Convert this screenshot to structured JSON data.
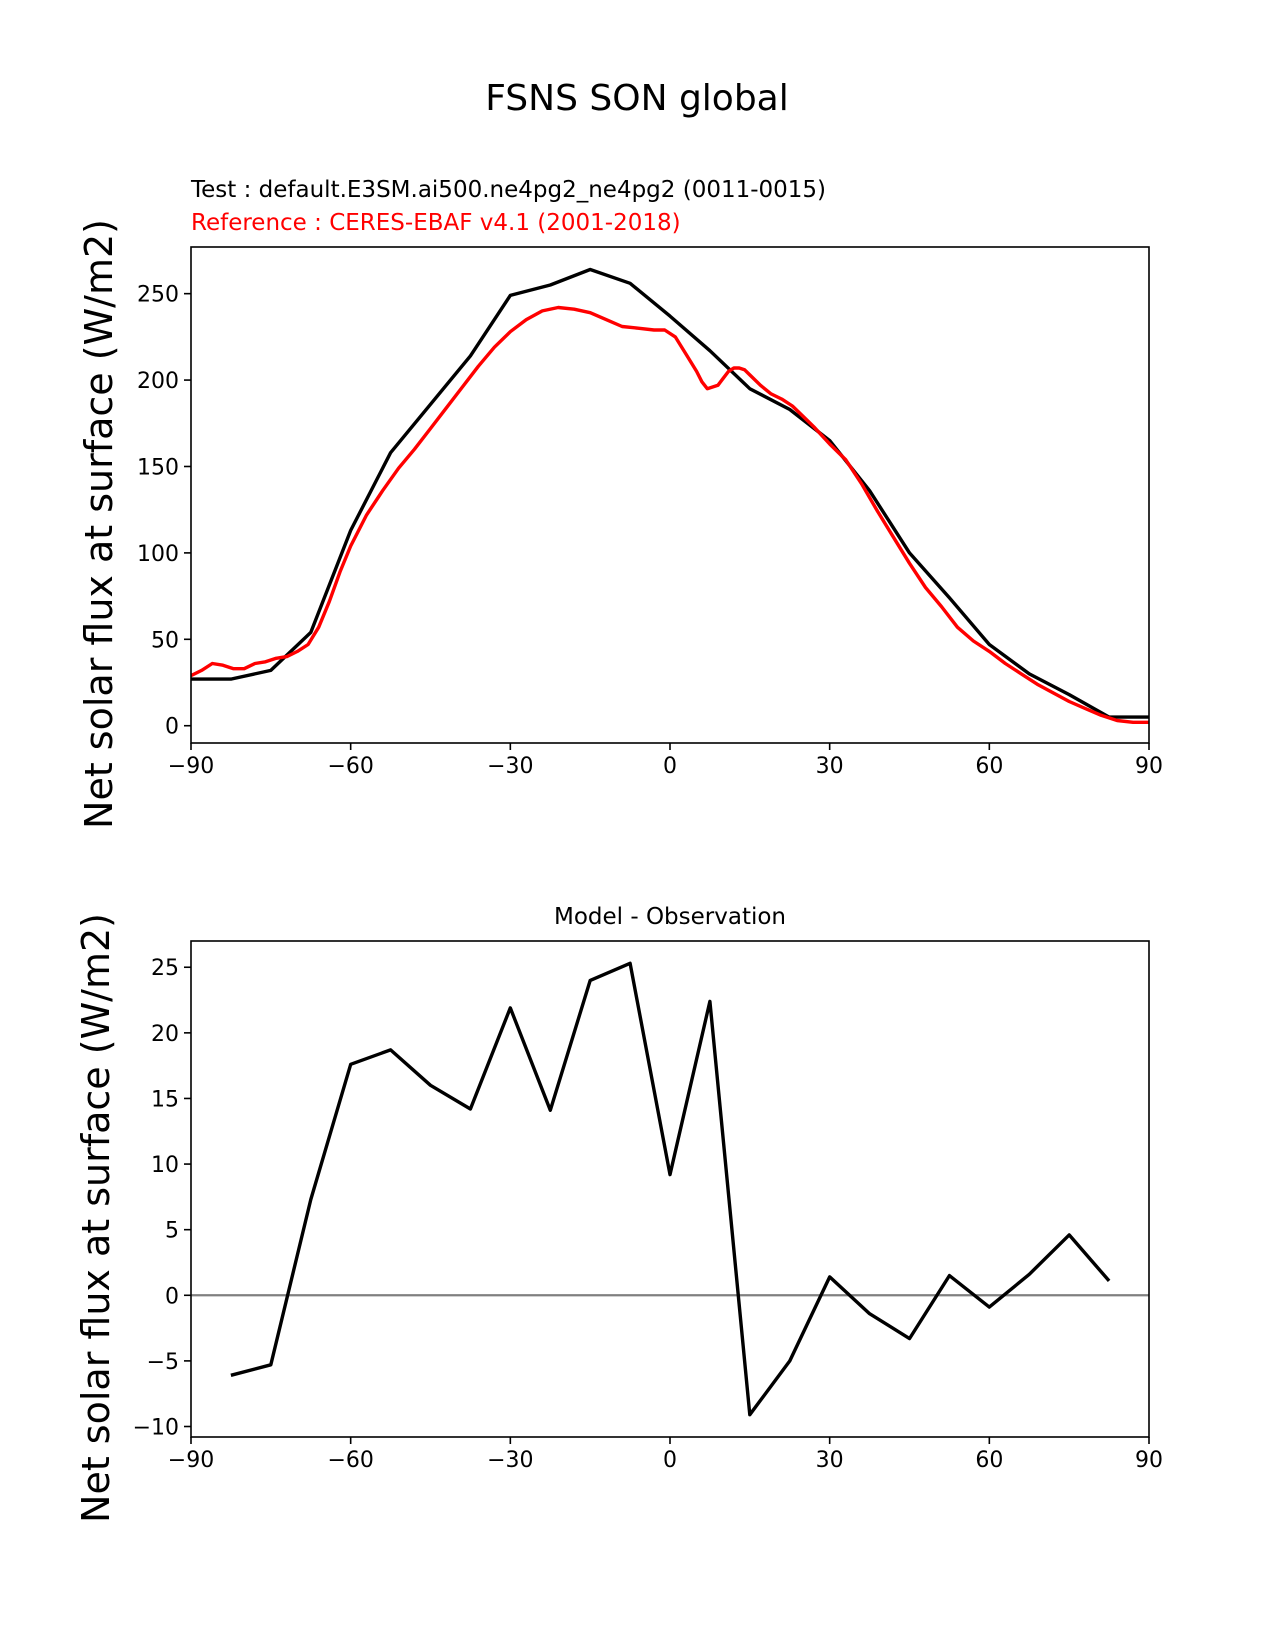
{
  "figure": {
    "suptitle": "FSNS SON global",
    "test_label": "Test : default.E3SM.ai500.ne4pg2_ne4pg2 (0011-0015)",
    "reference_label": "Reference : CERES-EBAF v4.1 (2001-2018)",
    "panel2_title": "Model - Observation",
    "ylabel_top": "Net solar flux at surface (W/m2)",
    "ylabel_bottom": "Net solar flux at surface (W/m2)"
  },
  "colors": {
    "test": "#000000",
    "reference": "#ff0000",
    "zero_line": "#808080"
  },
  "chart_data": [
    {
      "type": "line",
      "xlim": [
        -90,
        90
      ],
      "ylim": [
        -10,
        277
      ],
      "xticks": [
        -90,
        -60,
        -30,
        0,
        30,
        60,
        90
      ],
      "yticks": [
        0,
        50,
        100,
        150,
        200,
        250
      ],
      "xtick_labels": [
        "−90",
        "−60",
        "−30",
        "0",
        "30",
        "60",
        "90"
      ],
      "ytick_labels": [
        "0",
        "50",
        "100",
        "150",
        "200",
        "250"
      ],
      "series": [
        {
          "name": "Test : default.E3SM.ai500.ne4pg2_ne4pg2 (0011-0015)",
          "color": "#000000",
          "x": [
            -90,
            -82.5,
            -75,
            -67.5,
            -60,
            -52.5,
            -45,
            -37.5,
            -30,
            -22.5,
            -15,
            -7.5,
            0,
            7.5,
            15,
            22.5,
            30,
            37.5,
            45,
            52.5,
            60,
            67.5,
            75,
            82.5,
            90
          ],
          "y": [
            27,
            27,
            32,
            54,
            113,
            158,
            186,
            214,
            249,
            255,
            264,
            256,
            237,
            217,
            195,
            183,
            165,
            136,
            100,
            74,
            47,
            30,
            18,
            5,
            5
          ]
        },
        {
          "name": "Reference : CERES-EBAF v4.1 (2001-2018)",
          "color": "#ff0000",
          "x": [
            -90,
            -88,
            -86,
            -84,
            -82,
            -80,
            -78,
            -76,
            -74,
            -72,
            -70,
            -68,
            -66,
            -64,
            -62,
            -60,
            -57,
            -54,
            -51,
            -48,
            -45,
            -42,
            -39,
            -36,
            -33,
            -30,
            -27,
            -24,
            -21,
            -18,
            -15,
            -12,
            -9,
            -6,
            -3,
            -1,
            1,
            3,
            5,
            6,
            7,
            8,
            9,
            10,
            11,
            12,
            13,
            14,
            15,
            17,
            19,
            21,
            23,
            25,
            27,
            30,
            33,
            36,
            39,
            42,
            45,
            48,
            51,
            54,
            57,
            60,
            63,
            66,
            69,
            72,
            75,
            78,
            81,
            84,
            87,
            90
          ],
          "y": [
            29,
            32,
            36,
            35,
            33,
            33,
            36,
            37,
            39,
            40,
            43,
            47,
            57,
            72,
            89,
            104,
            122,
            136,
            149,
            160,
            172,
            184,
            196,
            208,
            219,
            228,
            235,
            240,
            242,
            241,
            239,
            235,
            231,
            230,
            229,
            229,
            225,
            215,
            205,
            199,
            195,
            196,
            197,
            201,
            205,
            207,
            207,
            206,
            203,
            197,
            192,
            189,
            185,
            179,
            173,
            163,
            154,
            140,
            124,
            109,
            94,
            80,
            69,
            57,
            49,
            43,
            36,
            30,
            24,
            19,
            14,
            10,
            6,
            3,
            2,
            2
          ]
        }
      ]
    },
    {
      "type": "line",
      "title": "Model - Observation",
      "xlim": [
        -90,
        90
      ],
      "ylim": [
        -10.8,
        27
      ],
      "xticks": [
        -90,
        -60,
        -30,
        0,
        30,
        60,
        90
      ],
      "yticks": [
        -10,
        -5,
        0,
        5,
        10,
        15,
        20,
        25
      ],
      "xtick_labels": [
        "−90",
        "−60",
        "−30",
        "0",
        "30",
        "60",
        "90"
      ],
      "ytick_labels": [
        "−10",
        "−5",
        "0",
        "5",
        "10",
        "15",
        "20",
        "25"
      ],
      "hline": 0,
      "series": [
        {
          "color": "#000000",
          "x": [
            -82.5,
            -75,
            -67.5,
            -60,
            -52.5,
            -45,
            -37.5,
            -30,
            -22.5,
            -15,
            -7.5,
            0,
            7.5,
            15,
            22.5,
            30,
            37.5,
            45,
            52.5,
            60,
            67.5,
            75,
            82.5
          ],
          "y": [
            -6.1,
            -5.3,
            7.3,
            17.6,
            18.7,
            16.0,
            14.2,
            21.9,
            14.1,
            24.0,
            25.3,
            9.2,
            22.4,
            -9.1,
            -5.0,
            1.4,
            -1.4,
            -3.3,
            1.5,
            -0.9,
            1.6,
            4.6,
            1.1
          ]
        }
      ]
    }
  ]
}
